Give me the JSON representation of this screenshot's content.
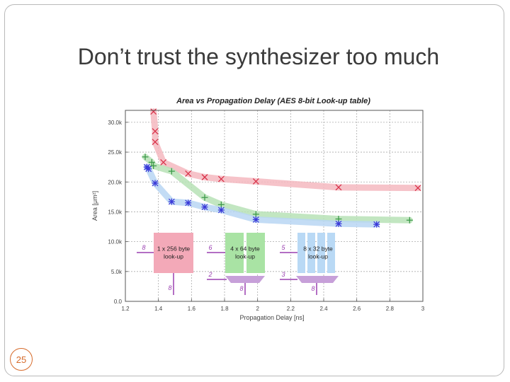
{
  "slide": {
    "title": "Don’t trust the synthesizer too much",
    "page_number": "25",
    "accent_color": "#d66a2a"
  },
  "chart_data": {
    "type": "scatter",
    "title": "Area vs Propagation Delay (AES 8-bit Look-up table)",
    "xlabel": "Propagation Delay [ns]",
    "ylabel": "Area [μm²]",
    "xlim": [
      1.2,
      3.0
    ],
    "ylim": [
      0,
      32000
    ],
    "x_ticks": [
      "1.2",
      "1.4",
      "1.6",
      "1.8",
      "2",
      "2.2",
      "2.4",
      "2.6",
      "2.8",
      "3"
    ],
    "x_tick_values": [
      1.2,
      1.4,
      1.6,
      1.8,
      2.0,
      2.2,
      2.4,
      2.6,
      2.8,
      3.0
    ],
    "y_ticks": [
      "0.0",
      "5.0k",
      "10.0k",
      "15.0k",
      "20.0k",
      "25.0k",
      "30.0k"
    ],
    "y_tick_values": [
      0,
      5000,
      10000,
      15000,
      20000,
      25000,
      30000
    ],
    "grid": true,
    "series": [
      {
        "marker": "x",
        "color": "#d8334a",
        "band_color": "#f5b8c0",
        "x": [
          1.37,
          1.38,
          1.38,
          1.43,
          1.58,
          1.68,
          1.78,
          1.99,
          2.49,
          2.97
        ],
        "y": [
          31800,
          28500,
          26700,
          23300,
          21400,
          20800,
          20500,
          20100,
          19100,
          19000
        ]
      },
      {
        "marker": "+",
        "color": "#3d9a4a",
        "band_color": "#b7e2b6",
        "x": [
          1.32,
          1.36,
          1.37,
          1.48,
          1.68,
          1.78,
          1.99,
          2.49,
          2.92
        ],
        "y": [
          24200,
          23300,
          22700,
          21800,
          17400,
          16200,
          14600,
          13800,
          13600
        ]
      },
      {
        "marker": "*",
        "color": "#3a3ad8",
        "band_color": "#b9d6f3",
        "x": [
          1.33,
          1.34,
          1.38,
          1.48,
          1.58,
          1.68,
          1.78,
          1.99,
          2.49,
          2.72
        ],
        "y": [
          22500,
          22200,
          19800,
          16700,
          16500,
          15800,
          15300,
          13700,
          13000,
          12900
        ]
      }
    ],
    "annotations": {
      "block1": {
        "label": "1 x 256 byte\nlook-up",
        "in_bits": "8",
        "out_bits": "8",
        "fill": "#f3a9b8"
      },
      "block2": {
        "label": "4 x 64 byte\nlook-up",
        "in_bits": "6",
        "sel_bits": "2",
        "out_bits": "8",
        "fill": "#a9e3a4"
      },
      "block3": {
        "label": "8 x 32 byte\nlook-up",
        "in_bits": "5",
        "sel_bits": "3",
        "out_bits": "8",
        "fill": "#b9d9f5"
      },
      "mux_color": "#c7a0d9",
      "wire_color": "#9a3fb0"
    }
  }
}
